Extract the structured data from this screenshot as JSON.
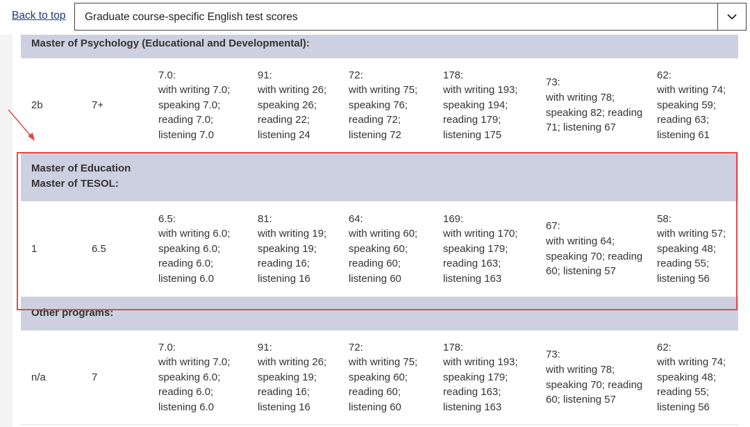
{
  "nav": {
    "back_link": "Back to top",
    "select": "Graduate course-specific English test scores"
  },
  "sections": [
    {
      "heading": [
        "Master of Psychology (Educational and Developmental):"
      ],
      "row": [
        [
          "2b"
        ],
        [
          "7+"
        ],
        [
          "7.0:",
          "with writing 7.0;",
          "speaking 7.0;",
          "reading 7.0;",
          "listening 7.0"
        ],
        [
          "91:",
          "with writing 26;",
          "speaking 26;",
          "reading 22;",
          "listening 24"
        ],
        [
          "72:",
          "with writing 75;",
          "speaking 76;",
          "reading 72;",
          "listening 72"
        ],
        [
          "178:",
          "with writing 193;",
          "speaking 194;",
          "reading 179;",
          "listening 175"
        ],
        [
          "73:",
          "with writing 78;",
          "speaking 82; reading 71; listening 67"
        ],
        [
          "62:",
          "with writing 74;",
          "speaking 59;",
          "reading 63;",
          "listening 61"
        ]
      ]
    },
    {
      "heading": [
        "Master of Education",
        "Master of TESOL:"
      ],
      "row": [
        [
          "1"
        ],
        [
          "6.5"
        ],
        [
          "6.5:",
          "with writing 6.0;",
          "speaking 6.0;",
          "reading 6.0;",
          "listening 6.0"
        ],
        [
          "81:",
          "with writing 19;",
          "speaking 19;",
          "reading 16;",
          "listening 16"
        ],
        [
          "64:",
          "with writing 60;",
          "speaking 60;",
          "reading 60;",
          "listening 60"
        ],
        [
          "169:",
          "with writing 170;",
          "speaking 179;",
          "reading 163;",
          "listening 163"
        ],
        [
          "67:",
          "with writing 64;",
          "speaking 70; reading 60; listening 57"
        ],
        [
          "58:",
          "with writing 57;",
          "speaking 48;",
          "reading 55;",
          "listening 56"
        ]
      ]
    },
    {
      "heading": [
        "Other programs:"
      ],
      "row": [
        [
          "n/a"
        ],
        [
          "7"
        ],
        [
          "7.0:",
          "with writing 7.0;",
          "speaking 6.0;",
          "reading 6.0;",
          "listening 6.0"
        ],
        [
          "91:",
          "with writing 26;",
          "speaking 19;",
          "reading 16;",
          "listening 16"
        ],
        [
          "72:",
          "with writing 75;",
          "speaking 60;",
          "reading 60;",
          "listening 60"
        ],
        [
          "178:",
          "with writing 193;",
          "speaking 179;",
          "reading 163;",
          "listening 163"
        ],
        [
          "73:",
          "with writing 78;",
          "speaking 70; reading 60; listening 57"
        ],
        [
          "62:",
          "with writing 74;",
          "speaking 48;",
          "reading 55;",
          "listening 56"
        ]
      ]
    }
  ]
}
